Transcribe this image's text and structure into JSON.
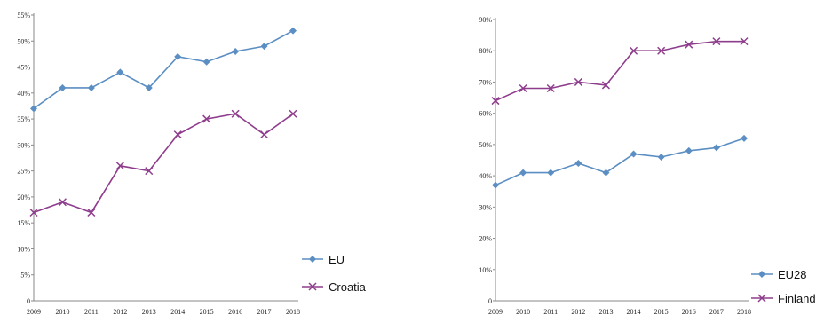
{
  "chart_data": [
    {
      "type": "line",
      "x": [
        "2009",
        "2010",
        "2011",
        "2012",
        "2013",
        "2014",
        "2015",
        "2016",
        "2017",
        "2018"
      ],
      "ylim": [
        0,
        55
      ],
      "ytick_values": [
        0,
        5,
        10,
        15,
        20,
        25,
        30,
        35,
        40,
        45,
        50,
        55
      ],
      "ytick_labels": [
        "0",
        "5%",
        "10%",
        "15%",
        "20%",
        "25%",
        "30%",
        "35%",
        "40%",
        "45%",
        "50%",
        "55%"
      ],
      "grid": false,
      "legend_position": "bottom-right",
      "series": [
        {
          "name": "EU",
          "marker": "diamond",
          "color": "#5b8ec2",
          "values": [
            37,
            41,
            41,
            44,
            41,
            47,
            46,
            48,
            49,
            52
          ]
        },
        {
          "name": "Croatia",
          "marker": "x",
          "color": "#8e3d8c",
          "values": [
            17,
            19,
            17,
            26,
            25,
            32,
            35,
            36,
            32,
            36
          ]
        }
      ]
    },
    {
      "type": "line",
      "x": [
        "2009",
        "2010",
        "2011",
        "2012",
        "2013",
        "2014",
        "2015",
        "2016",
        "2017",
        "2018"
      ],
      "ylim": [
        0,
        90
      ],
      "ytick_values": [
        0,
        10,
        20,
        30,
        40,
        50,
        60,
        70,
        80,
        90
      ],
      "ytick_labels": [
        "0",
        "10%",
        "20%",
        "30%",
        "40%",
        "50%",
        "60%",
        "70%",
        "80%",
        "90%"
      ],
      "grid": false,
      "legend_position": "bottom-right",
      "series": [
        {
          "name": "EU28",
          "marker": "diamond",
          "color": "#5b8ec2",
          "values": [
            37,
            41,
            41,
            44,
            41,
            47,
            46,
            48,
            49,
            52
          ]
        },
        {
          "name": "Finland",
          "marker": "x",
          "color": "#8e3d8c",
          "values": [
            64,
            68,
            68,
            70,
            69,
            80,
            80,
            82,
            83,
            83
          ]
        }
      ]
    }
  ]
}
